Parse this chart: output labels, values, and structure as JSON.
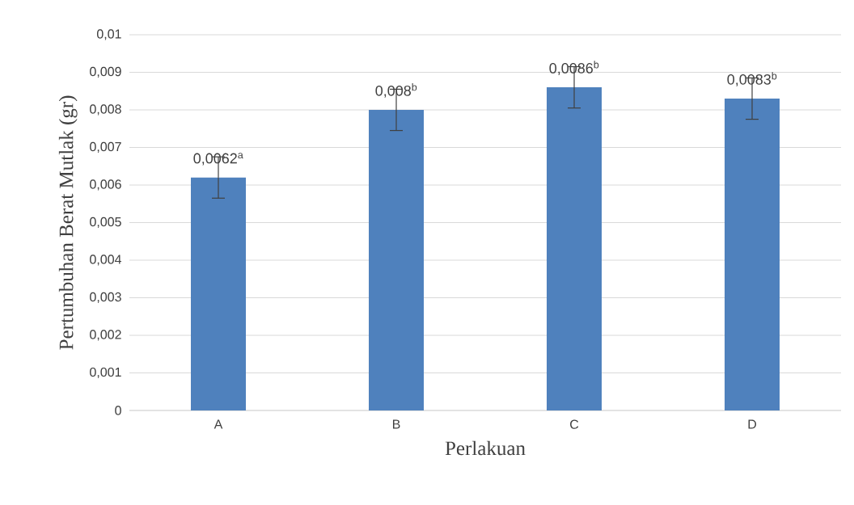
{
  "chart_data": {
    "type": "bar",
    "xlabel": "Perlakuan",
    "ylabel": "Pertumbuhan Berat Mutlak (gr)",
    "categories": [
      "A",
      "B",
      "C",
      "D"
    ],
    "values": [
      0.0062,
      0.008,
      0.0086,
      0.0083
    ],
    "errors": [
      0.00055,
      0.00055,
      0.00055,
      0.00055
    ],
    "value_labels": [
      "0,0062$^{a}$",
      "0,008$^{b}$",
      "0,0086$^{b}$",
      "0,0083$^{b}$"
    ],
    "color": "#4f81bd",
    "ylim": [
      0,
      0.01
    ],
    "yticks": [
      {
        "value": 0,
        "label": "0"
      },
      {
        "value": 0.001,
        "label": "0,001"
      },
      {
        "value": 0.002,
        "label": "0,002"
      },
      {
        "value": 0.003,
        "label": "0,003"
      },
      {
        "value": 0.004,
        "label": "0,004"
      },
      {
        "value": 0.005,
        "label": "0,005"
      },
      {
        "value": 0.006,
        "label": "0,006"
      },
      {
        "value": 0.007,
        "label": "0,007"
      },
      {
        "value": 0.008,
        "label": "0,008"
      },
      {
        "value": 0.009,
        "label": "0,009"
      },
      {
        "value": 0.01,
        "label": "0,01"
      }
    ],
    "grid": "y"
  }
}
